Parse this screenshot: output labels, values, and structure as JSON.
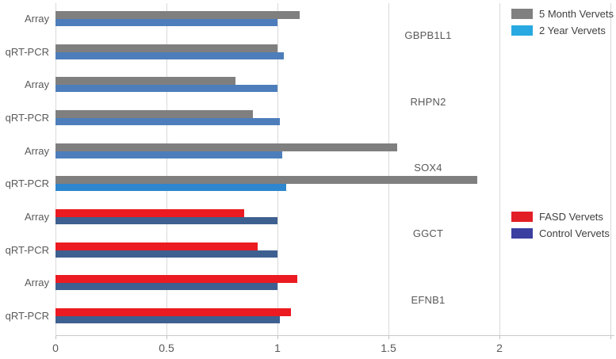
{
  "chart_data": {
    "type": "bar",
    "orientation": "horizontal",
    "title": "",
    "xlabel": "",
    "ylabel": "",
    "xlim": [
      0,
      2.5
    ],
    "grid": "vertical",
    "x_ticks": [
      {
        "label": "0",
        "value": 0
      },
      {
        "label": "0.5",
        "value": 0.5
      },
      {
        "label": "1",
        "value": 1
      },
      {
        "label": "1.5",
        "value": 1.5
      },
      {
        "label": "2",
        "value": 2
      }
    ],
    "gridline_values": [
      0,
      0.5,
      1,
      1.5,
      2,
      2.5
    ],
    "genes": [
      {
        "name": "GBPB1L1",
        "rows": [
          {
            "label": "Array",
            "bars": [
              {
                "series": "5 Month Vervets",
                "value": 1.1,
                "color": "#7F7F7F"
              },
              {
                "series": "2 Year Vervets",
                "value": 1.0,
                "color": "#4D7EBB"
              }
            ]
          },
          {
            "label": "qRT-PCR",
            "bars": [
              {
                "series": "5 Month Vervets",
                "value": 1.0,
                "color": "#7F7F7F"
              },
              {
                "series": "2 Year Vervets",
                "value": 1.03,
                "color": "#4D7EBB"
              }
            ]
          }
        ]
      },
      {
        "name": "RHPN2",
        "rows": [
          {
            "label": "Array",
            "bars": [
              {
                "series": "5 Month Vervets",
                "value": 0.81,
                "color": "#7F7F7F"
              },
              {
                "series": "2 Year Vervets",
                "value": 1.0,
                "color": "#4D7EBB"
              }
            ]
          },
          {
            "label": "qRT-PCR",
            "bars": [
              {
                "series": "5 Month Vervets",
                "value": 0.89,
                "color": "#7F7F7F"
              },
              {
                "series": "2 Year Vervets",
                "value": 1.01,
                "color": "#4D7EBB"
              }
            ]
          }
        ]
      },
      {
        "name": "SOX4",
        "rows": [
          {
            "label": "Array",
            "bars": [
              {
                "series": "5 Month Vervets",
                "value": 1.54,
                "color": "#7F7F7F"
              },
              {
                "series": "2 Year Vervets",
                "value": 1.02,
                "color": "#4D7EBB"
              }
            ]
          },
          {
            "label": "qRT-PCR",
            "bars": [
              {
                "series": "5 Month Vervets",
                "value": 1.9,
                "color": "#7F7F7F"
              },
              {
                "series": "2 Year Vervets",
                "value": 1.04,
                "color": "#2E87CE"
              }
            ]
          }
        ]
      },
      {
        "name": "GGCT",
        "rows": [
          {
            "label": "Array",
            "bars": [
              {
                "series": "FASD Vervets",
                "value": 0.85,
                "color": "#EB1B21"
              },
              {
                "series": "Control Vervets",
                "value": 1.0,
                "color": "#3E6090"
              }
            ]
          },
          {
            "label": "qRT-PCR",
            "bars": [
              {
                "series": "FASD Vervets",
                "value": 0.91,
                "color": "#EB1B21"
              },
              {
                "series": "Control Vervets",
                "value": 1.0,
                "color": "#3E6090"
              }
            ]
          }
        ]
      },
      {
        "name": "EFNB1",
        "rows": [
          {
            "label": "Array",
            "bars": [
              {
                "series": "FASD Vervets",
                "value": 1.09,
                "color": "#EB1B21"
              },
              {
                "series": "Control Vervets",
                "value": 1.0,
                "color": "#3E6090"
              }
            ]
          },
          {
            "label": "qRT-PCR",
            "bars": [
              {
                "series": "FASD Vervets",
                "value": 1.06,
                "color": "#EB1B21"
              },
              {
                "series": "Control Vervets",
                "value": 1.01,
                "color": "#3E6090"
              }
            ]
          }
        ]
      }
    ],
    "legends": [
      {
        "position": "top-right",
        "items": [
          {
            "label": "5 Month Vervets",
            "color": "#808080"
          },
          {
            "label": "2 Year Vervets",
            "color": "#29A9E1"
          }
        ]
      },
      {
        "position": "middle-right",
        "items": [
          {
            "label": "FASD Vervets",
            "color": "#E21F26"
          },
          {
            "label": "Control Vervets",
            "color": "#3B3FA0"
          }
        ]
      }
    ]
  },
  "colors": {
    "gridline": "#D9D9D9",
    "axis_text": "#595959",
    "background": "#FFFFFF"
  }
}
